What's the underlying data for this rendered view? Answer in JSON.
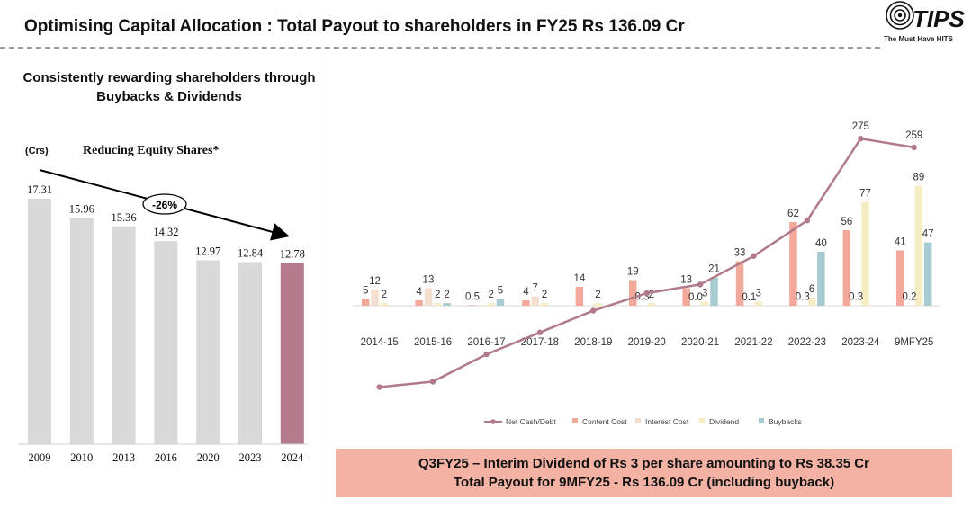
{
  "header": {
    "title": "Optimising Capital Allocation : Total Payout to shareholders in FY25 Rs 136.09 Cr",
    "logo_text": "TIPS",
    "logo_tagline": "The Must Have HITS"
  },
  "left_panel": {
    "heading_line1": "Consistently rewarding shareholders through",
    "heading_line2": "Buybacks & Dividends"
  },
  "chart_data": [
    {
      "type": "bar",
      "title": "Reducing Equity Shares*",
      "unit_label": "(Crs)",
      "categories": [
        "2009",
        "2010",
        "2013",
        "2016",
        "2020",
        "2023",
        "2024"
      ],
      "values": [
        17.31,
        15.96,
        15.36,
        14.32,
        12.97,
        12.84,
        12.78
      ],
      "ylim": [
        0,
        17.31
      ],
      "annotation": "-26%",
      "colors": {
        "bar": "#d9d9d9",
        "highlight": "#b47b8c",
        "trend_arrow": "#000000"
      }
    },
    {
      "type": "bar",
      "categories": [
        "2014-15",
        "2015-16",
        "2016-17",
        "2017-18",
        "2018-19",
        "2019-20",
        "2020-21",
        "2021-22",
        "2022-23",
        "2023-24",
        "9MFY25"
      ],
      "series": [
        {
          "name": "Content Cost",
          "color": "#f2a89b",
          "values": [
            5,
            4,
            0.5,
            4,
            14,
            19,
            13,
            33,
            62,
            56,
            41
          ],
          "labels": [
            "5",
            "4",
            "0.5",
            "4",
            "14",
            "19",
            "13",
            "33",
            "62",
            "56",
            "41"
          ]
        },
        {
          "name": "Interest Cost",
          "color": "#f3dfcf",
          "values": [
            12,
            13,
            0,
            7,
            0,
            0.3,
            0.03,
            0.1,
            0.3,
            0.3,
            0.2
          ],
          "labels": [
            "12",
            "13",
            "",
            "7",
            "",
            "0.3",
            "0.0",
            "0.1",
            "0.3",
            "0.3",
            "0.2"
          ]
        },
        {
          "name": "Dividend",
          "color": "#f6edc4",
          "values": [
            2,
            2,
            2,
            2,
            2,
            2,
            3,
            3,
            6,
            77,
            89
          ],
          "labels": [
            "2",
            "2",
            "2",
            "2",
            "2",
            "2",
            "3",
            "3",
            "6",
            "77",
            "89"
          ]
        },
        {
          "name": "Buybacks",
          "color": "#a7cbd0",
          "values": [
            0,
            2,
            5,
            0,
            0,
            0,
            21,
            0,
            40,
            0,
            47
          ],
          "labels": [
            "",
            "2",
            "5",
            "",
            "",
            "",
            "21",
            "",
            "40",
            "",
            "47"
          ]
        }
      ],
      "net_cash_debt": {
        "name": "Net Cash/Debt",
        "color": "#b07a8a",
        "values": [
          -180,
          -170,
          -120,
          -80,
          -40,
          -8,
          8,
          60,
          125,
          275,
          259
        ],
        "labels": [
          "",
          "",
          "",
          "",
          "",
          "",
          "",
          "",
          "",
          "275",
          "259"
        ]
      },
      "legend": [
        "Net Cash/Debt",
        "Content Cost",
        "Interest Cost",
        "Dividend",
        "Buybacks"
      ],
      "legend_position": "bottom"
    }
  ],
  "callout": {
    "line1": "Q3FY25 – Interim Dividend of Rs 3 per share amounting to Rs 38.35 Cr",
    "line2": "Total Payout for 9MFY25 - Rs 136.09 Cr (including buyback)",
    "background": "#f3b2a3"
  }
}
